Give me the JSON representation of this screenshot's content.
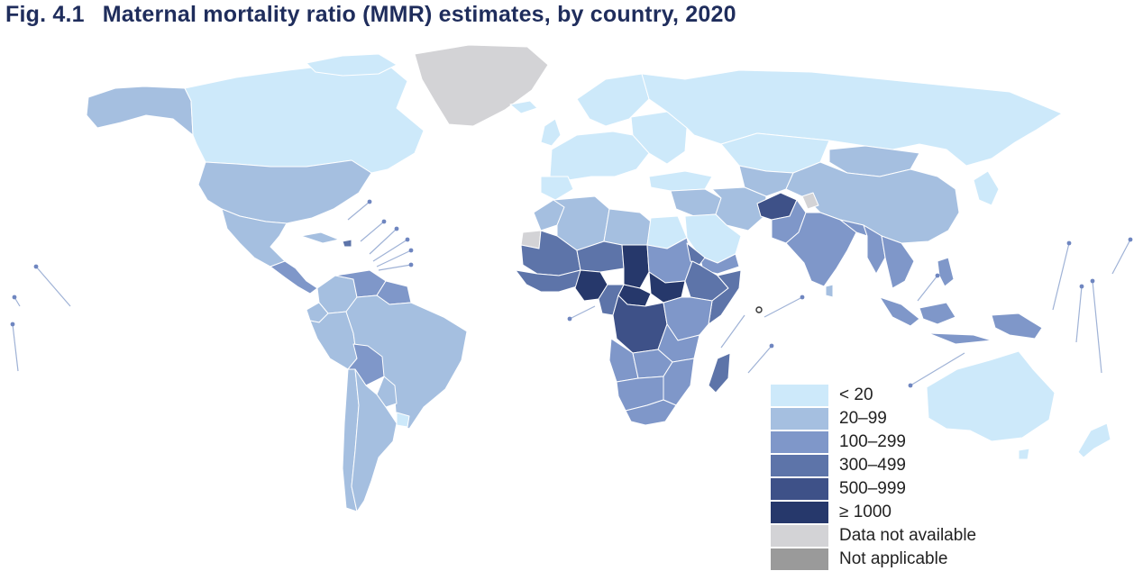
{
  "title": {
    "figure_number": "Fig. 4.1",
    "text": "Maternal mortality ratio (MMR) estimates, by country, 2020"
  },
  "legend": {
    "items": [
      {
        "key": "lt20",
        "label": "< 20",
        "color": "#cde9fa"
      },
      {
        "key": "20-99",
        "label": "20–99",
        "color": "#a5bfe0"
      },
      {
        "key": "100-299",
        "label": "100–299",
        "color": "#7f97c9"
      },
      {
        "key": "300-499",
        "label": "300–499",
        "color": "#5d74a9"
      },
      {
        "key": "500-999",
        "label": "500–999",
        "color": "#3e5188"
      },
      {
        "key": "gte1000",
        "label": "≥ 1000",
        "color": "#26386b"
      },
      {
        "key": "na",
        "label": "Data not available",
        "color": "#d3d3d6"
      },
      {
        "key": "notapp",
        "label": "Not applicable",
        "color": "#9a9a9a"
      }
    ]
  },
  "colors": {
    "border": "#ffffff",
    "outline": "#4a4a5a",
    "title": "#1f2d5c",
    "leader_line": "#9fb2d6"
  }
}
